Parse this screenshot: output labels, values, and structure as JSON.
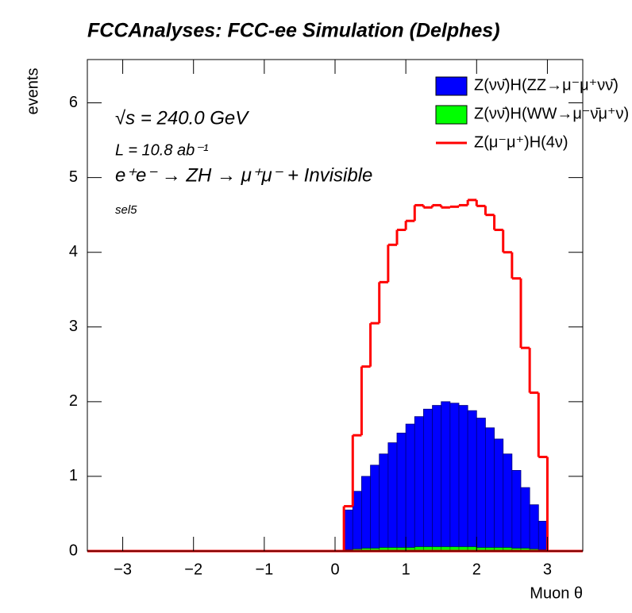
{
  "chart_data": {
    "type": "histogram",
    "title": "FCCAnalyses: FCC-ee Simulation (Delphes)",
    "x_label": "Muon θ",
    "y_label": "events",
    "annotations": [
      "√s = 240.0 GeV",
      "L = 10.8 ab⁻¹",
      "e⁺e⁻ → ZH → μ⁺μ⁻ + Invisible",
      "sel5"
    ],
    "bins": [
      0.125,
      0.25,
      0.375,
      0.5,
      0.625,
      0.75,
      0.875,
      1.0,
      1.125,
      1.25,
      1.375,
      1.5,
      1.625,
      1.75,
      1.875,
      2.0,
      2.125,
      2.25,
      2.375,
      2.5,
      2.625,
      2.75,
      2.875,
      3.0
    ],
    "stacked": true,
    "series": [
      {
        "name": "Z(νν̄)H(WW→μ⁻ν̄μ⁺ν)",
        "color": "#00ff00",
        "style": "fill",
        "values": [
          0.02,
          0.03,
          0.04,
          0.04,
          0.05,
          0.05,
          0.05,
          0.05,
          0.06,
          0.06,
          0.06,
          0.06,
          0.06,
          0.06,
          0.06,
          0.05,
          0.05,
          0.05,
          0.05,
          0.04,
          0.04,
          0.03,
          0.02
        ]
      },
      {
        "name": "Z(νν̄)H(ZZ→μ⁻μ⁺νν̄)",
        "color": "#0000ff",
        "style": "fill",
        "values": [
          0.53,
          0.77,
          0.96,
          1.11,
          1.25,
          1.4,
          1.53,
          1.65,
          1.74,
          1.84,
          1.89,
          1.94,
          1.92,
          1.89,
          1.82,
          1.73,
          1.6,
          1.45,
          1.25,
          1.04,
          0.81,
          0.59,
          0.38
        ]
      },
      {
        "name": "Z(μ⁻μ⁺)H(4ν)",
        "color": "#ff0000",
        "style": "line",
        "values": [
          0.6,
          1.55,
          2.47,
          3.05,
          3.6,
          4.1,
          4.3,
          4.42,
          4.63,
          4.6,
          4.63,
          4.6,
          4.61,
          4.63,
          4.7,
          4.62,
          4.5,
          4.3,
          4.0,
          3.65,
          2.72,
          2.12,
          1.26
        ]
      }
    ],
    "xlim": [
      -3.5,
      3.5
    ],
    "ylim": [
      0,
      6.58
    ],
    "xticks": [
      {
        "value": -3,
        "label": "−3"
      },
      {
        "value": -2,
        "label": "−2"
      },
      {
        "value": -1,
        "label": "−1"
      },
      0,
      1,
      2,
      3
    ],
    "yticks": [
      0,
      1,
      2,
      3,
      4,
      5,
      6
    ]
  }
}
